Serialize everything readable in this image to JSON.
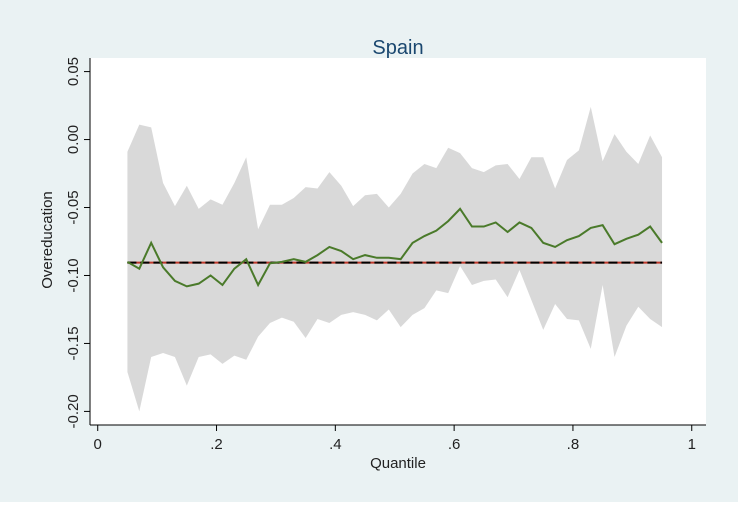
{
  "chart_data": {
    "type": "line",
    "title": "Spain",
    "x_label": "Quantile",
    "y_label": "Overeducation",
    "x": [
      0.05,
      0.07,
      0.09,
      0.11,
      0.13,
      0.15,
      0.17,
      0.19,
      0.21,
      0.23,
      0.25,
      0.27,
      0.29,
      0.31,
      0.33,
      0.35,
      0.37,
      0.39,
      0.41,
      0.43,
      0.45,
      0.47,
      0.49,
      0.51,
      0.53,
      0.55,
      0.57,
      0.59,
      0.61,
      0.63,
      0.65,
      0.67,
      0.69,
      0.71,
      0.73,
      0.75,
      0.77,
      0.79,
      0.81,
      0.83,
      0.85,
      0.87,
      0.89,
      0.91,
      0.93,
      0.95
    ],
    "series": [
      {
        "color": "#4a7a2a",
        "values": [
          -0.09,
          -0.095,
          -0.076,
          -0.094,
          -0.104,
          -0.108,
          -0.106,
          -0.1,
          -0.107,
          -0.095,
          -0.088,
          -0.107,
          -0.091,
          -0.09,
          -0.088,
          -0.09,
          -0.085,
          -0.079,
          -0.082,
          -0.088,
          -0.085,
          -0.087,
          -0.087,
          -0.088,
          -0.076,
          -0.071,
          -0.067,
          -0.06,
          -0.051,
          -0.064,
          -0.064,
          -0.061,
          -0.068,
          -0.061,
          -0.065,
          -0.076,
          -0.079,
          -0.074,
          -0.071,
          -0.065,
          -0.063,
          -0.077,
          -0.073,
          -0.07,
          -0.064,
          -0.076
        ]
      }
    ],
    "band": {
      "color": "#d9d9d9",
      "upper": [
        -0.009,
        0.011,
        0.009,
        -0.032,
        -0.049,
        -0.034,
        -0.051,
        -0.044,
        -0.048,
        -0.032,
        -0.013,
        -0.066,
        -0.048,
        -0.048,
        -0.043,
        -0.035,
        -0.036,
        -0.024,
        -0.034,
        -0.049,
        -0.041,
        -0.04,
        -0.05,
        -0.04,
        -0.025,
        -0.018,
        -0.021,
        -0.006,
        -0.01,
        -0.021,
        -0.024,
        -0.019,
        -0.018,
        -0.029,
        -0.013,
        -0.013,
        -0.036,
        -0.015,
        -0.008,
        0.024,
        -0.016,
        0.004,
        -0.009,
        -0.018,
        0.003,
        -0.013
      ],
      "lower": [
        -0.171,
        -0.2,
        -0.16,
        -0.157,
        -0.16,
        -0.181,
        -0.16,
        -0.158,
        -0.165,
        -0.159,
        -0.162,
        -0.145,
        -0.135,
        -0.131,
        -0.134,
        -0.146,
        -0.132,
        -0.135,
        -0.129,
        -0.127,
        -0.129,
        -0.133,
        -0.125,
        -0.138,
        -0.129,
        -0.124,
        -0.111,
        -0.113,
        -0.093,
        -0.107,
        -0.104,
        -0.103,
        -0.116,
        -0.096,
        -0.118,
        -0.14,
        -0.121,
        -0.132,
        -0.133,
        -0.154,
        -0.107,
        -0.16,
        -0.137,
        -0.123,
        -0.132,
        -0.138
      ]
    },
    "hlines": [
      {
        "value": -0.0905,
        "color": "#c0392b",
        "dashed": false
      },
      {
        "value": -0.0905,
        "color": "#000000",
        "dashed": true
      }
    ],
    "xlim": [
      -0.013,
      1.024
    ],
    "ylim": [
      -0.21,
      0.06
    ],
    "xticks": [
      0,
      {
        "value": 0.2,
        "label": ".2"
      },
      {
        "value": 0.4,
        "label": ".4"
      },
      {
        "value": 0.6,
        "label": ".6"
      },
      {
        "value": 0.8,
        "label": ".8"
      },
      1
    ],
    "yticks": [
      {
        "value": 0.05,
        "label": "0.05"
      },
      {
        "value": 0,
        "label": "0.00"
      },
      {
        "value": -0.05,
        "label": "-0.05"
      },
      {
        "value": -0.1,
        "label": "-0.10"
      },
      {
        "value": -0.15,
        "label": "-0.15"
      },
      {
        "value": -0.2,
        "label": "-0.20"
      }
    ]
  }
}
